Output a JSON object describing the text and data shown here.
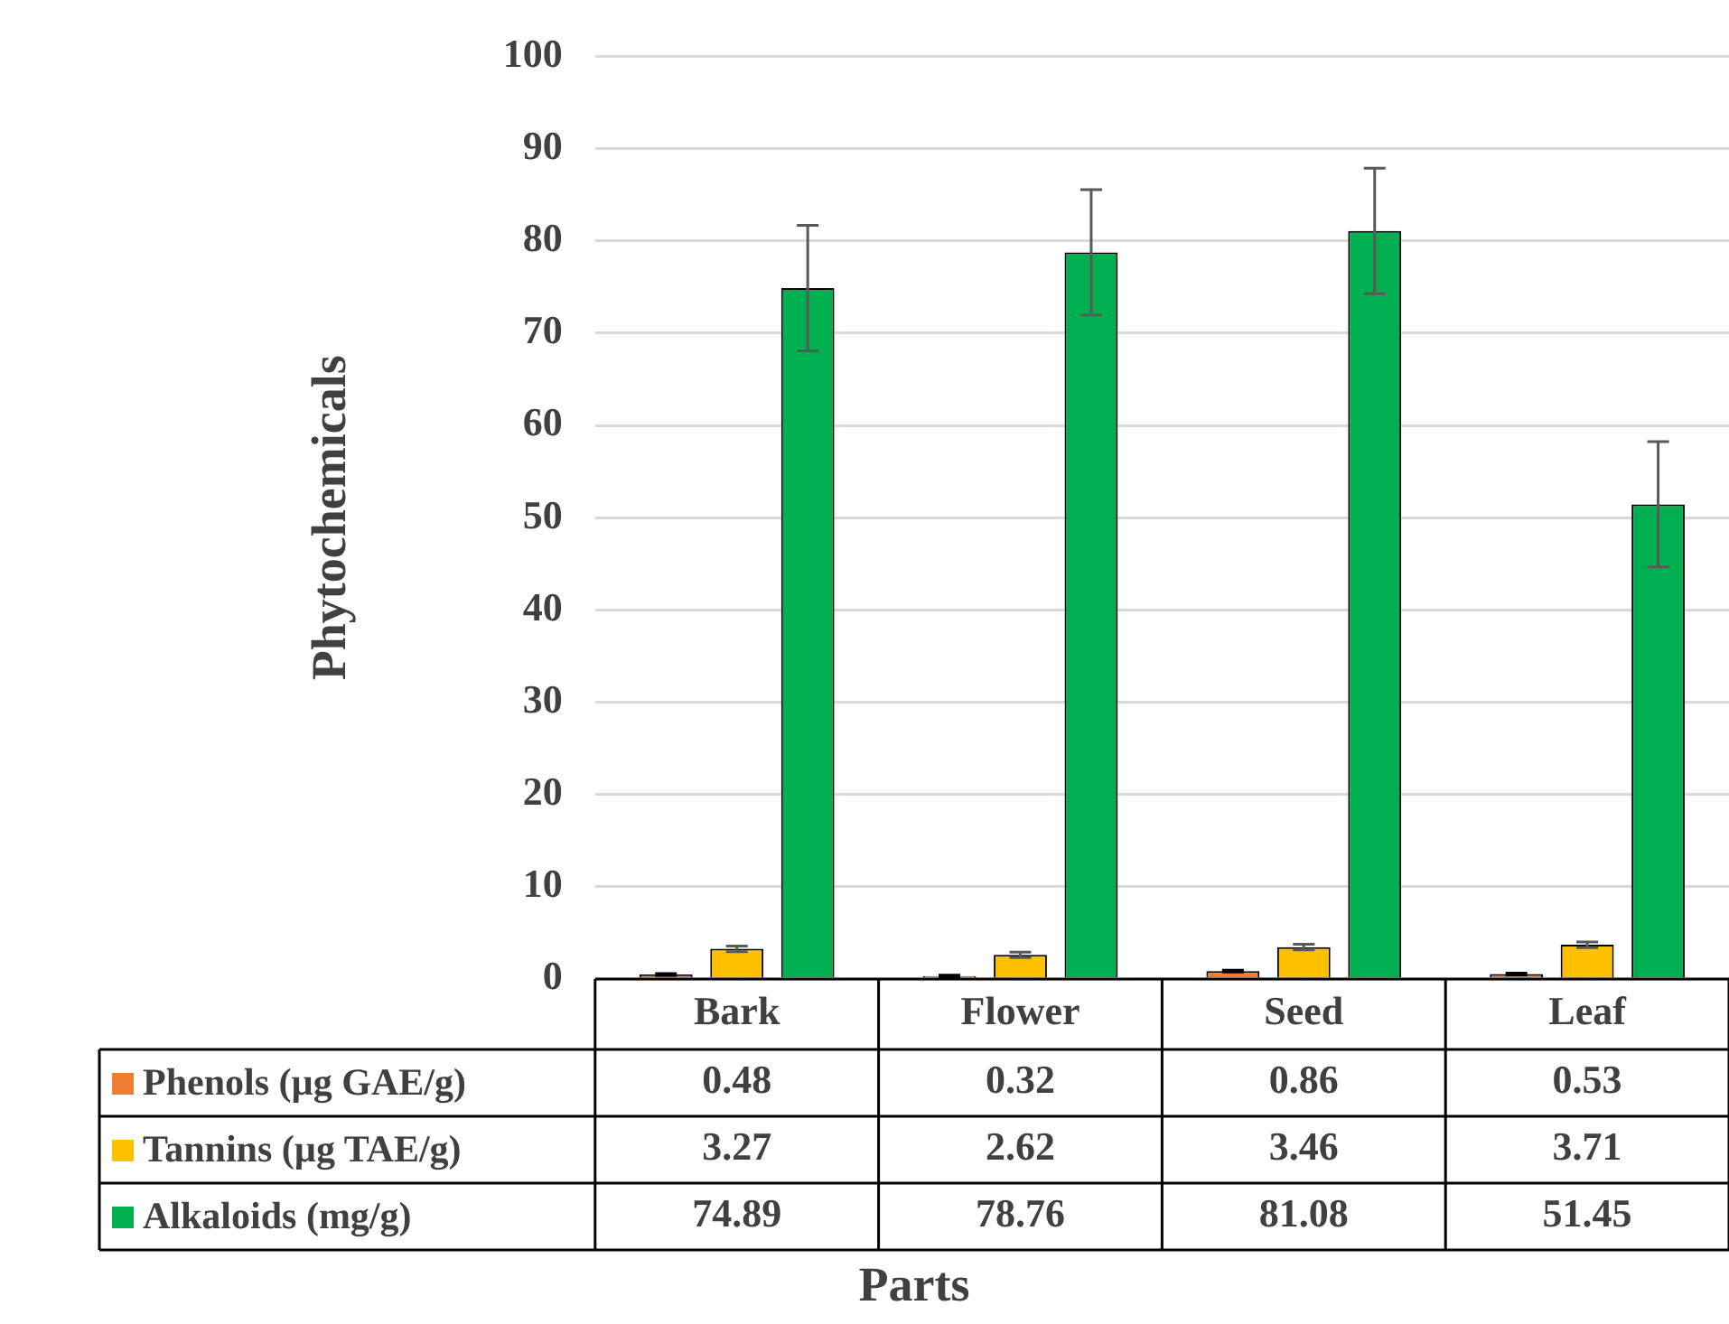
{
  "chart_data": {
    "type": "bar",
    "xlabel": "Parts",
    "ylabel": "Phytochemicals",
    "categories": [
      "Bark",
      "Flower",
      "Seed",
      "Leaf"
    ],
    "series": [
      {
        "name": "Phenols (µg GAE/g)",
        "color": "#ed7d31",
        "values": [
          0.48,
          0.32,
          0.86,
          0.53
        ],
        "errors": [
          0.1,
          0.1,
          0.1,
          0.1
        ]
      },
      {
        "name": "Tannins (µg TAE/g)",
        "color": "#ffc000",
        "values": [
          3.27,
          2.62,
          3.46,
          3.71
        ],
        "errors": [
          0.3,
          0.3,
          0.3,
          0.3
        ]
      },
      {
        "name": "Alkaloids (mg/g)",
        "color": "#00b050",
        "values": [
          74.89,
          78.76,
          81.08,
          51.45
        ],
        "errors": [
          6.8,
          6.8,
          6.8,
          6.8
        ]
      }
    ],
    "ylim": [
      0,
      100
    ],
    "yticks": [
      0,
      10,
      20,
      30,
      40,
      50,
      60,
      70,
      80,
      90,
      100
    ],
    "grid": "y",
    "legend": "bottom",
    "data_labels": true
  }
}
